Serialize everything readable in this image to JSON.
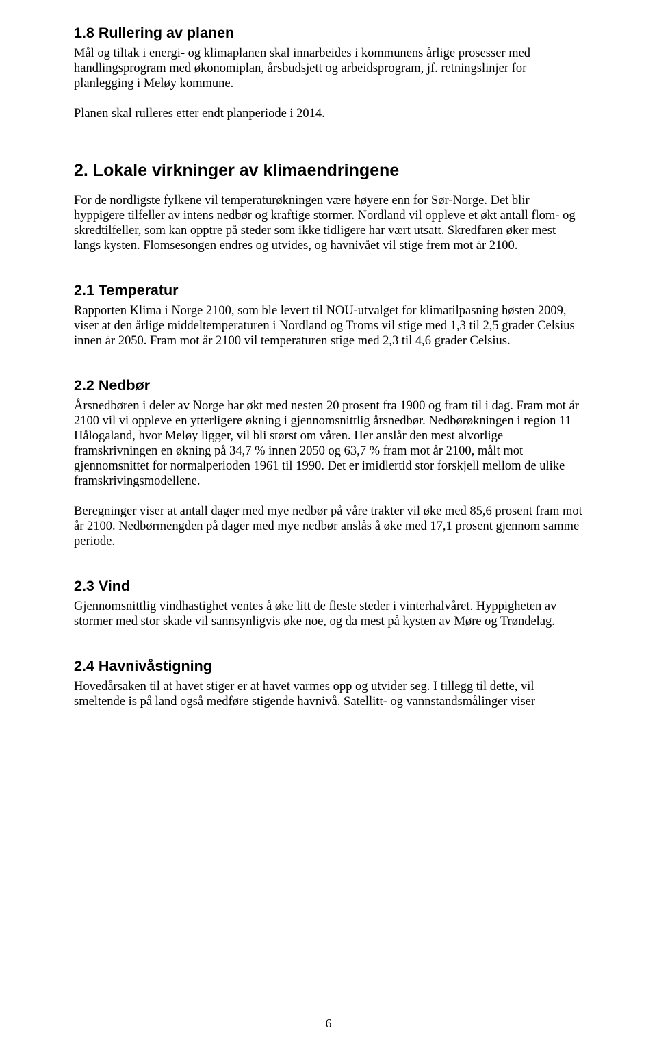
{
  "sections": {
    "s1_8": {
      "heading": "1.8 Rullering av planen",
      "para1": "Mål og tiltak i energi- og klimaplanen skal innarbeides i kommunens årlige prosesser med handlingsprogram med økonomiplan, årsbudsjett og arbeidsprogram, jf. retningslinjer for planlegging i Meløy kommune.",
      "para2": "Planen skal rulleres etter endt planperiode i 2014."
    },
    "ch2": {
      "heading": "2. Lokale virkninger av klimaendringene",
      "para": "For de nordligste fylkene vil temperaturøkningen være høyere enn for Sør-Norge. Det blir hyppigere tilfeller av intens nedbør og kraftige stormer. Nordland vil oppleve et økt antall flom- og skredtilfeller, som kan opptre på steder som ikke tidligere har vært utsatt. Skredfaren øker mest langs kysten. Flomsesongen endres og utvides, og havnivået vil stige frem mot år 2100."
    },
    "s2_1": {
      "heading": "2.1 Temperatur",
      "para": "Rapporten Klima i Norge 2100, som ble levert til NOU-utvalget for klimatilpasning høsten 2009, viser at den årlige middeltemperaturen i Nordland og Troms vil stige med 1,3 til 2,5 grader Celsius innen år 2050. Fram mot år 2100 vil temperaturen stige med 2,3 til 4,6 grader Celsius."
    },
    "s2_2": {
      "heading": "2.2 Nedbør",
      "para1": "Årsnedbøren i deler av Norge har økt med nesten 20 prosent fra 1900 og fram til i dag. Fram mot år 2100 vil vi oppleve en ytterligere økning i gjennomsnittlig årsnedbør. Nedbørøkningen i region 11 Hålogaland, hvor Meløy ligger, vil bli størst om våren. Her anslår den mest alvorlige framskrivningen en økning på 34,7 % innen 2050 og 63,7 % fram mot år 2100, målt mot gjennomsnittet for normalperioden 1961 til 1990. Det er imidlertid stor forskjell mellom de ulike framskrivingsmodellene.",
      "para2": "Beregninger viser at antall dager med mye nedbør på våre trakter vil øke med 85,6 prosent fram mot år 2100. Nedbørmengden på dager med mye nedbør anslås å øke med 17,1 prosent gjennom samme periode."
    },
    "s2_3": {
      "heading": "2.3 Vind",
      "para": "Gjennomsnittlig vindhastighet ventes å øke litt de fleste steder i vinterhalvåret. Hyppigheten av stormer med stor skade vil sannsynligvis øke noe, og da mest på kysten av Møre og Trøndelag."
    },
    "s2_4": {
      "heading": "2.4 Havnivåstigning",
      "para": "Hovedårsaken til at havet stiger er at havet varmes opp og utvider seg. I tillegg til dette, vil smeltende is på land også medføre stigende havnivå. Satellitt- og vannstandsmålinger viser"
    }
  },
  "page_number": "6"
}
